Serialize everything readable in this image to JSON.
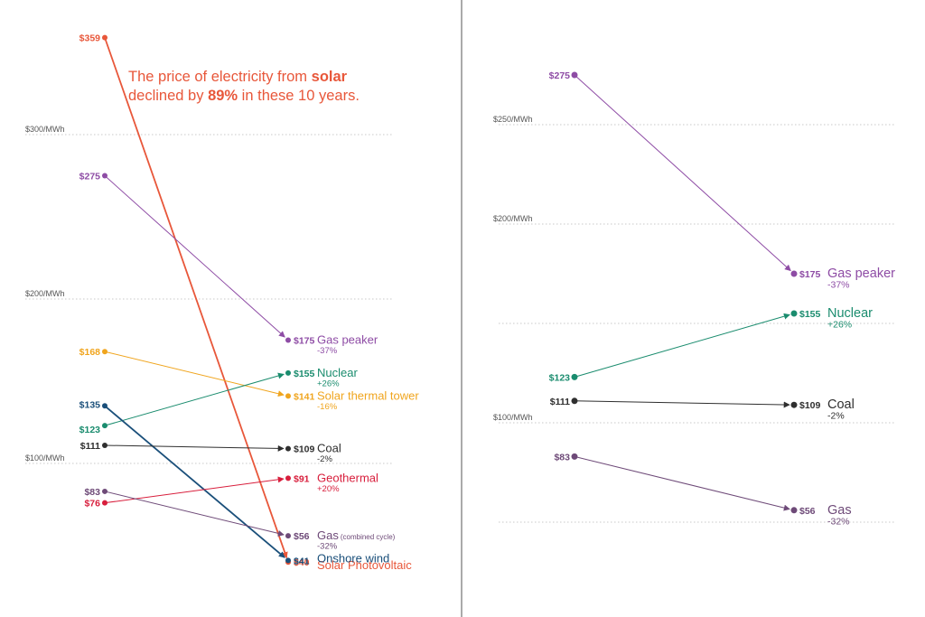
{
  "annotation": {
    "line1_a": "The price of electricity from ",
    "line1_b": "solar",
    "line2_a": "declined by ",
    "line2_b": "89%",
    "line2_c": " in these 10 years."
  },
  "chart_data": [
    {
      "type": "line",
      "subtype": "slope",
      "gridlines": [
        {
          "value": 300,
          "label": "$300/MWh"
        },
        {
          "value": 200,
          "label": "$200/MWh"
        },
        {
          "value": 100,
          "label": "$100/MWh"
        }
      ],
      "series": [
        {
          "name": "Solar Photovoltaic",
          "start": 359,
          "end": 40,
          "start_label": "$359",
          "end_label": "$40",
          "change": "",
          "color": "#e8573a"
        },
        {
          "name": "Gas peaker",
          "start": 275,
          "end": 175,
          "start_label": "$275",
          "end_label": "$175",
          "change": "-37%",
          "color": "#8e4ca5"
        },
        {
          "name": "Solar thermal tower",
          "start": 168,
          "end": 141,
          "start_label": "$168",
          "end_label": "$141",
          "change": "-16%",
          "color": "#f0a51e"
        },
        {
          "name": "Nuclear",
          "start": 123,
          "end": 155,
          "start_label": "$123",
          "end_label": "$155",
          "change": "+26%",
          "color": "#1a8c6e"
        },
        {
          "name": "Onshore wind",
          "start": 135,
          "end": 41,
          "start_label": "$135",
          "end_label": "$41",
          "change": "",
          "color": "#1a4f7a"
        },
        {
          "name": "Coal",
          "start": 111,
          "end": 109,
          "start_label": "$111",
          "end_label": "$109",
          "change": "-2%",
          "color": "#2f2f2f"
        },
        {
          "name": "Geothermal",
          "start": 76,
          "end": 91,
          "start_label": "$76",
          "end_label": "$91",
          "change": "+20%",
          "color": "#d81e3c"
        },
        {
          "name": "Gas",
          "name_suffix": "(combined cycle)",
          "start": 83,
          "end": 56,
          "start_label": "$83",
          "end_label": "$56",
          "change": "-32%",
          "color": "#6e4a78"
        }
      ]
    },
    {
      "type": "line",
      "subtype": "slope",
      "gridlines": [
        {
          "value": 250,
          "label": "$250/MWh"
        },
        {
          "value": 200,
          "label": "$200/MWh"
        },
        {
          "value": 150,
          "label": ""
        },
        {
          "value": 100,
          "label": "$100/MWh"
        },
        {
          "value": 50,
          "label": ""
        }
      ],
      "series": [
        {
          "name": "Gas peaker",
          "start": 275,
          "end": 175,
          "start_label": "$275",
          "end_label": "$175",
          "change": "-37%",
          "color": "#8e4ca5"
        },
        {
          "name": "Nuclear",
          "start": 123,
          "end": 155,
          "start_label": "$123",
          "end_label": "$155",
          "change": "+26%",
          "color": "#1a8c6e"
        },
        {
          "name": "Coal",
          "start": 111,
          "end": 109,
          "start_label": "$111",
          "end_label": "$109",
          "change": "-2%",
          "color": "#2f2f2f"
        },
        {
          "name": "Gas",
          "start": 83,
          "end": 56,
          "start_label": "$83",
          "end_label": "$56",
          "change": "-32%",
          "color": "#6e4a78"
        }
      ]
    }
  ]
}
